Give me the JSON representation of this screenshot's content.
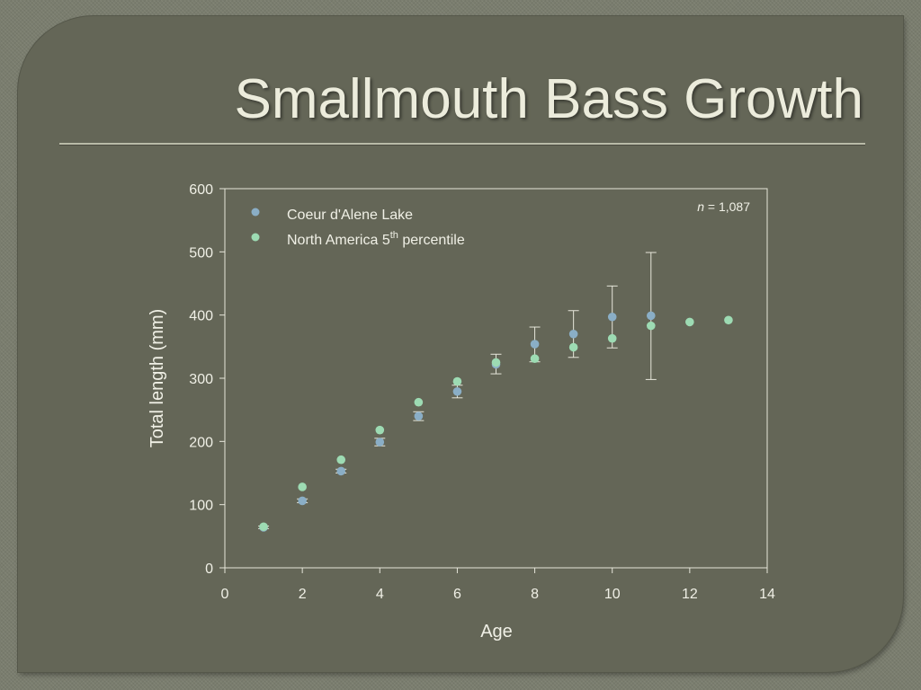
{
  "slide": {
    "title": "Smallmouth Bass Growth"
  },
  "chart_data": {
    "type": "scatter",
    "xlabel": "Age",
    "ylabel": "Total length (mm)",
    "xlim": [
      0,
      14
    ],
    "ylim": [
      0,
      600
    ],
    "x_ticks": [
      "0",
      "2",
      "4",
      "6",
      "8",
      "10",
      "12",
      "14"
    ],
    "y_ticks": [
      "0",
      "100",
      "200",
      "300",
      "400",
      "500",
      "600"
    ],
    "grid": false,
    "legend_position": "top-left",
    "annotation": {
      "italic": "n",
      "text": " = 1,087"
    },
    "series": [
      {
        "name": "Coeur d'Alene Lake",
        "color": "#8aaec6",
        "x": [
          1,
          2,
          3,
          4,
          5,
          6,
          7,
          8,
          9,
          10,
          11
        ],
        "y": [
          64,
          106,
          153,
          199,
          240,
          279,
          322,
          354,
          370,
          397,
          399
        ],
        "error_low": [
          62,
          103,
          150,
          193,
          233,
          269,
          307,
          326,
          333,
          348,
          298
        ],
        "error_high": [
          66,
          109,
          156,
          205,
          247,
          289,
          338,
          381,
          407,
          446,
          499
        ]
      },
      {
        "name": "North America 5",
        "name_superscript": "th",
        "name_suffix": " percentile",
        "color": "#9ddbb3",
        "x": [
          1,
          2,
          3,
          4,
          5,
          6,
          7,
          8,
          9,
          10,
          11,
          12,
          13
        ],
        "y": [
          65,
          128,
          171,
          218,
          262,
          295,
          325,
          331,
          349,
          363,
          383,
          389,
          392
        ]
      }
    ]
  }
}
